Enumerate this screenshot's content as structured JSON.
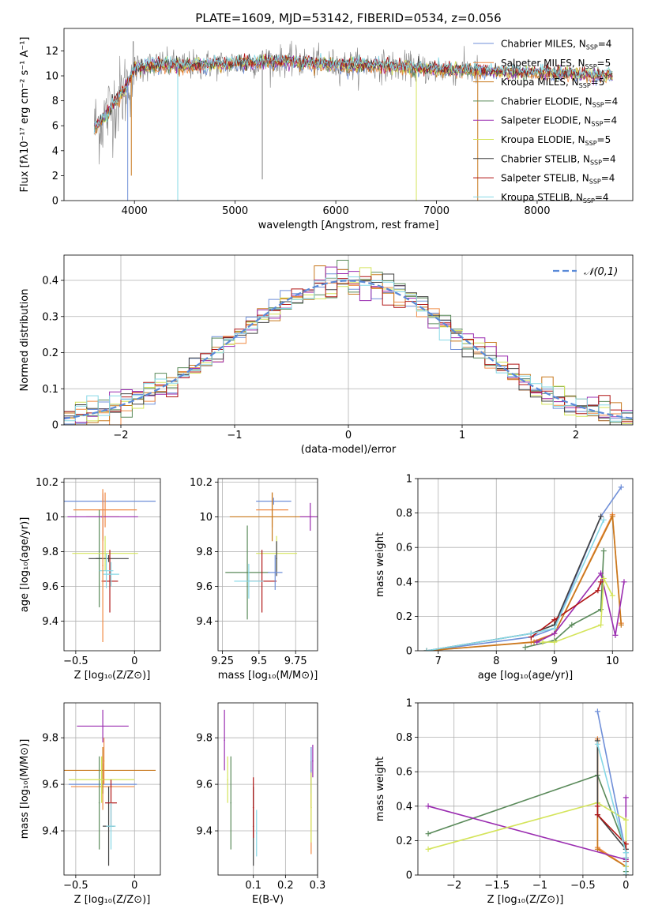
{
  "title": "PLATE=1609, MJD=53142, FIBERID=0534, z=0.056",
  "colors": {
    "Chabrier MILES": "#6f8fd8",
    "Salpeter MILES": "#f08a44",
    "Kroupa MILES": "#c8781c",
    "Chabrier ELODIE": "#5a8a5a",
    "Salpeter ELODIE": "#9a2cb0",
    "Kroupa ELODIE": "#d4e45a",
    "Chabrier STELIB": "#404040",
    "Salpeter STELIB": "#b01515",
    "Kroupa STELIB": "#86d8e6",
    "Spectrum": "#808080",
    "Gaussian": "#5a8ad8"
  },
  "chart_data": [
    {
      "name": "spectrum",
      "type": "line",
      "title": "PLATE=1609, MJD=53142, FIBERID=0534, z=0.056",
      "xlabel": "wavelength [Angstrom, rest frame]",
      "ylabel": "Flux [fλ10⁻¹⁷ erg cm⁻² s⁻¹ A⁻¹]",
      "xlim": [
        3300,
        8950
      ],
      "ylim": [
        0,
        13.8
      ],
      "xticks": [
        4000,
        5000,
        6000,
        7000,
        8000
      ],
      "yticks": [
        0,
        2,
        4,
        6,
        8,
        10,
        12
      ],
      "legend_position": "right",
      "legend": [
        "Chabrier MILES, N_SSP=4",
        "Salpeter MILES, N_SSP=5",
        "Kroupa MILES, N_SSP=5",
        "Chabrier ELODIE, N_SSP=4",
        "Salpeter ELODIE, N_SSP=4",
        "Kroupa ELODIE, N_SSP=5",
        "Chabrier STELIB, N_SSP=4",
        "Salpeter STELIB, N_SSP=4",
        "Kroupa STELIB, N_SSP=4"
      ],
      "continuum_x": [
        3600,
        3700,
        3800,
        3900,
        4000,
        4200,
        4500,
        5000,
        5500,
        6000,
        6500,
        7000,
        7400,
        7800,
        8200,
        8500,
        8900
      ],
      "continuum_y": [
        5.8,
        6.6,
        7.8,
        8.8,
        10.6,
        10.9,
        10.8,
        11.0,
        11.2,
        10.9,
        10.8,
        10.5,
        10.4,
        10.3,
        10.2,
        10.1,
        10.0
      ],
      "absorption_dips": [
        {
          "x": 3933,
          "y": 0.0,
          "model": "Chabrier MILES"
        },
        {
          "x": 3969,
          "y": 2.0,
          "model": "Kroupa MILES"
        },
        {
          "x": 4430,
          "y": 0.0,
          "model": "Kroupa STELIB"
        },
        {
          "x": 5270,
          "y": 1.7,
          "model": "Spectrum"
        },
        {
          "x": 6800,
          "y": 0.0,
          "model": "Kroupa ELODIE"
        },
        {
          "x": 7410,
          "y": 0.0,
          "model": "Kroupa MILES"
        }
      ],
      "data_end_x": 7420,
      "model_end_x": 8750
    },
    {
      "name": "residual-histogram",
      "type": "bar",
      "xlabel": "(data-model)/error",
      "ylabel": "Normed distribution",
      "xlim": [
        -2.5,
        2.5
      ],
      "ylim": [
        0,
        0.47
      ],
      "xticks": [
        -2,
        -1,
        0,
        1,
        2
      ],
      "yticks": [
        0,
        0.1,
        0.2,
        0.3,
        0.4
      ],
      "legend": "𝒩(0,1)",
      "legend_position": "top-right",
      "bin_width": 0.1,
      "gaussian": {
        "mean": 0,
        "sigma": 1
      }
    },
    {
      "name": "age-vs-Z",
      "type": "scatter",
      "xlabel": "Z [log₁₀(Z/Z⊙)]",
      "ylabel": "age  [log₁₀(age/yr)]",
      "xlim": [
        -0.6,
        0.22
      ],
      "ylim": [
        9.23,
        10.22
      ],
      "xticks": [
        -0.5,
        0.0
      ],
      "yticks": [
        9.4,
        9.6,
        9.8,
        10.0,
        10.2
      ],
      "points": [
        {
          "model": "Chabrier MILES",
          "x": -0.27,
          "y": 10.09,
          "xerr": 0.45,
          "yerr": 0.02
        },
        {
          "model": "Salpeter MILES",
          "x": -0.25,
          "y": 10.04,
          "xerr": 0.27,
          "yerr": 0.1
        },
        {
          "model": "Kroupa MILES",
          "x": -0.27,
          "y": 10.0,
          "xerr": 0.14,
          "yerr": 0.14
        },
        {
          "model": "Chabrier ELODIE",
          "x": -0.3,
          "y": 9.76,
          "xerr": 0.03,
          "yerr": 0.28
        },
        {
          "model": "Salpeter ELODIE",
          "x": -0.27,
          "y": 10.0,
          "xerr": 0.3,
          "yerr": 0.13
        },
        {
          "model": "Kroupa ELODIE",
          "x": -0.25,
          "y": 9.79,
          "xerr": 0.28,
          "yerr": 0.1
        },
        {
          "model": "Chabrier STELIB",
          "x": -0.22,
          "y": 9.76,
          "xerr": 0.17,
          "yerr": 0.02
        },
        {
          "model": "Salpeter STELIB",
          "x": -0.21,
          "y": 9.63,
          "xerr": 0.07,
          "yerr": 0.18
        },
        {
          "model": "Kroupa STELIB",
          "x": -0.2,
          "y": 9.67,
          "xerr": 0.07,
          "yerr": 0.07
        },
        {
          "model": "Salpeter ELODIE",
          "x": -0.28,
          "y": 10.0,
          "xerr": 0.0,
          "yerr": 0.0
        },
        {
          "model": "Kroupa STELIB",
          "x": -0.24,
          "y": 9.69,
          "xerr": 0.06,
          "yerr": 0.1
        },
        {
          "model": "Salpeter MILES",
          "x": -0.27,
          "y": 9.72,
          "xerr": 0.0,
          "yerr": 0.44
        }
      ]
    },
    {
      "name": "age-vs-mass",
      "type": "scatter",
      "xlabel": "mass [log₁₀(M/M⊙)]",
      "ylabel": "",
      "xlim": [
        9.22,
        9.9
      ],
      "ylim": [
        9.23,
        10.22
      ],
      "xticks": [
        9.25,
        9.5,
        9.75
      ],
      "yticks": [
        9.4,
        9.6,
        9.8,
        10.0,
        10.2
      ],
      "points": [
        {
          "model": "Chabrier MILES",
          "x": 9.6,
          "y": 10.09,
          "xerr": 0.12,
          "yerr": 0.02
        },
        {
          "model": "Salpeter MILES",
          "x": 9.59,
          "y": 10.04,
          "xerr": 0.11,
          "yerr": 0.1
        },
        {
          "model": "Kroupa MILES",
          "x": 9.59,
          "y": 10.0,
          "xerr": 0.29,
          "yerr": 0.14
        },
        {
          "model": "Chabrier ELODIE",
          "x": 9.42,
          "y": 9.68,
          "xerr": 0.15,
          "yerr": 0.27
        },
        {
          "model": "Salpeter ELODIE",
          "x": 9.85,
          "y": 10.0,
          "xerr": 0.07,
          "yerr": 0.08
        },
        {
          "model": "Kroupa ELODIE",
          "x": 9.62,
          "y": 9.79,
          "xerr": 0.14,
          "yerr": 0.1
        },
        {
          "model": "Chabrier STELIB",
          "x": 9.62,
          "y": 9.76,
          "xerr": 0.0,
          "yerr": 0.1
        },
        {
          "model": "Salpeter STELIB",
          "x": 9.52,
          "y": 9.63,
          "xerr": 0.1,
          "yerr": 0.18
        },
        {
          "model": "Kroupa STELIB",
          "x": 9.43,
          "y": 9.63,
          "xerr": 0.1,
          "yerr": 0.1
        },
        {
          "model": "Chabrier MILES",
          "x": 9.61,
          "y": 9.68,
          "xerr": 0.05,
          "yerr": 0.1
        }
      ]
    },
    {
      "name": "massweight-vs-age",
      "type": "line",
      "xlabel": "age  [log₁₀(age/yr)]",
      "ylabel": "mass weight",
      "xlim": [
        6.65,
        10.35
      ],
      "ylim": [
        0,
        1
      ],
      "xticks": [
        7,
        8,
        9,
        10
      ],
      "yticks": [
        0,
        0.2,
        0.4,
        0.6,
        0.8,
        1.0
      ],
      "series": [
        {
          "name": "Chabrier MILES",
          "x": [
            6.8,
            8.6,
            9.0,
            9.8,
            10.15
          ],
          "y": [
            0.0,
            0.08,
            0.13,
            0.78,
            0.95
          ]
        },
        {
          "name": "Salpeter MILES",
          "x": [
            6.8,
            8.6,
            9.0,
            10.0,
            10.15
          ],
          "y": [
            0.0,
            0.05,
            0.1,
            0.79,
            0.16
          ]
        },
        {
          "name": "Kroupa MILES",
          "x": [
            6.8,
            8.65,
            9.0,
            10.0,
            10.15
          ],
          "y": [
            0.0,
            0.05,
            0.1,
            0.78,
            0.15
          ]
        },
        {
          "name": "Chabrier ELODIE",
          "x": [
            8.5,
            9.0,
            9.3,
            9.8,
            9.85
          ],
          "y": [
            0.02,
            0.06,
            0.15,
            0.24,
            0.58
          ]
        },
        {
          "name": "Salpeter ELODIE",
          "x": [
            8.7,
            9.0,
            9.8,
            10.05,
            10.2
          ],
          "y": [
            0.05,
            0.1,
            0.45,
            0.09,
            0.4
          ]
        },
        {
          "name": "Kroupa ELODIE",
          "x": [
            8.8,
            9.0,
            9.8,
            9.85,
            10.0
          ],
          "y": [
            0.05,
            0.05,
            0.15,
            0.42,
            0.32
          ]
        },
        {
          "name": "Chabrier STELIB",
          "x": [
            6.8,
            8.6,
            9.0,
            9.8
          ],
          "y": [
            0.0,
            0.1,
            0.15,
            0.78
          ]
        },
        {
          "name": "Salpeter STELIB",
          "x": [
            8.6,
            9.0,
            9.75,
            9.8
          ],
          "y": [
            0.08,
            0.18,
            0.35,
            0.4
          ]
        },
        {
          "name": "Kroupa STELIB",
          "x": [
            6.8,
            8.6,
            9.0,
            9.85
          ],
          "y": [
            0.0,
            0.1,
            0.13,
            0.76
          ]
        }
      ]
    },
    {
      "name": "mass-vs-Z",
      "type": "scatter",
      "xlabel": "Z [log₁₀(Z/Z⊙)]",
      "ylabel": "mass [log₁₀(M/M⊙)]",
      "xlim": [
        -0.6,
        0.22
      ],
      "ylim": [
        9.21,
        9.95
      ],
      "xticks": [
        -0.5,
        0.0
      ],
      "yticks": [
        9.4,
        9.6,
        9.8
      ],
      "points": [
        {
          "model": "Chabrier MILES",
          "x": -0.27,
          "y": 9.6,
          "xerr": 0.29,
          "yerr": 0.0
        },
        {
          "model": "Salpeter MILES",
          "x": -0.27,
          "y": 9.59,
          "xerr": 0.27,
          "yerr": 0.1
        },
        {
          "model": "Kroupa MILES",
          "x": -0.27,
          "y": 9.66,
          "xerr": 0.45,
          "yerr": 0.1
        },
        {
          "model": "Chabrier ELODIE",
          "x": -0.3,
          "y": 9.52,
          "xerr": 0.0,
          "yerr": 0.2
        },
        {
          "model": "Salpeter ELODIE",
          "x": -0.27,
          "y": 9.85,
          "xerr": 0.22,
          "yerr": 0.07
        },
        {
          "model": "Kroupa ELODIE",
          "x": -0.28,
          "y": 9.62,
          "xerr": 0.28,
          "yerr": 0.1
        },
        {
          "model": "Chabrier STELIB",
          "x": -0.22,
          "y": 9.42,
          "xerr": 0.05,
          "yerr": 0.17
        },
        {
          "model": "Salpeter STELIB",
          "x": -0.2,
          "y": 9.52,
          "xerr": 0.05,
          "yerr": 0.1
        },
        {
          "model": "Kroupa STELIB",
          "x": -0.2,
          "y": 9.42,
          "xerr": 0.04,
          "yerr": 0.1
        },
        {
          "model": "Salpeter MILES",
          "x": -0.26,
          "y": 9.7,
          "xerr": 0.0,
          "yerr": 0.1
        }
      ]
    },
    {
      "name": "mass-vs-EBV",
      "type": "scatter",
      "xlabel": "E(B-V)",
      "ylabel": "",
      "xlim": [
        -0.01,
        0.3
      ],
      "ylim": [
        9.21,
        9.95
      ],
      "xticks": [
        0.1,
        0.2,
        0.3
      ],
      "yticks": [
        9.4,
        9.6,
        9.8
      ],
      "points": [
        {
          "model": "Salpeter ELODIE",
          "x": 0.01,
          "y": 9.79,
          "xerr": 0.0,
          "yerr": 0.13
        },
        {
          "model": "Kroupa ELODIE",
          "x": 0.02,
          "y": 9.62,
          "xerr": 0.0,
          "yerr": 0.1
        },
        {
          "model": "Chabrier ELODIE",
          "x": 0.03,
          "y": 9.52,
          "xerr": 0.0,
          "yerr": 0.2
        },
        {
          "model": "Chabrier STELIB",
          "x": 0.1,
          "y": 9.42,
          "xerr": 0.0,
          "yerr": 0.17
        },
        {
          "model": "Salpeter STELIB",
          "x": 0.1,
          "y": 9.5,
          "xerr": 0.0,
          "yerr": 0.13
        },
        {
          "model": "Kroupa STELIB",
          "x": 0.11,
          "y": 9.39,
          "xerr": 0.0,
          "yerr": 0.1
        },
        {
          "model": "Salpeter MILES",
          "x": 0.28,
          "y": 9.5,
          "xerr": 0.0,
          "yerr": 0.2
        },
        {
          "model": "Kroupa MILES",
          "x": 0.28,
          "y": 9.6,
          "xerr": 0.0,
          "yerr": 0.1
        },
        {
          "model": "Chabrier MILES",
          "x": 0.28,
          "y": 9.66,
          "xerr": 0.0,
          "yerr": 0.1
        },
        {
          "model": "Salpeter ELODIE",
          "x": 0.285,
          "y": 9.7,
          "xerr": 0.0,
          "yerr": 0.07
        },
        {
          "model": "Kroupa ELODIE",
          "x": 0.28,
          "y": 9.5,
          "xerr": 0.0,
          "yerr": 0.15
        }
      ]
    },
    {
      "name": "massweight-vs-Z",
      "type": "line",
      "xlabel": "Z [log₁₀(Z/Z⊙)]",
      "ylabel": "mass weight",
      "xlim": [
        -2.42,
        0.08
      ],
      "ylim": [
        0,
        1
      ],
      "xticks": [
        -2.0,
        -1.5,
        -1.0,
        -0.5,
        0.0
      ],
      "yticks": [
        0,
        0.2,
        0.4,
        0.6,
        0.8,
        1.0
      ],
      "series": [
        {
          "name": "Chabrier MILES",
          "x": [
            -0.33,
            0.0,
            0.0,
            0.0
          ],
          "y": [
            0.95,
            0.13,
            0.08,
            0.0
          ]
        },
        {
          "name": "Salpeter MILES",
          "x": [
            -0.33,
            -0.33,
            0.0,
            0.0,
            0.0
          ],
          "y": [
            0.79,
            0.16,
            0.05,
            0.1,
            0.0
          ]
        },
        {
          "name": "Kroupa MILES",
          "x": [
            -0.33,
            -0.33,
            0.0,
            0.0,
            0.0
          ],
          "y": [
            0.78,
            0.15,
            0.05,
            0.1,
            0.0
          ]
        },
        {
          "name": "Chabrier ELODIE",
          "x": [
            -2.3,
            -0.33,
            0.0,
            0.0
          ],
          "y": [
            0.24,
            0.58,
            0.15,
            0.02
          ]
        },
        {
          "name": "Salpeter ELODIE",
          "x": [
            -2.3,
            0.0,
            0.0,
            0.0
          ],
          "y": [
            0.4,
            0.09,
            0.45,
            0.1
          ]
        },
        {
          "name": "Kroupa ELODIE",
          "x": [
            -2.3,
            -0.33,
            0.0,
            0.0
          ],
          "y": [
            0.15,
            0.42,
            0.32,
            0.05
          ]
        },
        {
          "name": "Chabrier STELIB",
          "x": [
            -0.33,
            -0.33,
            0.0,
            0.0
          ],
          "y": [
            0.78,
            0.35,
            0.15,
            0.0
          ]
        },
        {
          "name": "Salpeter STELIB",
          "x": [
            -0.33,
            -0.33,
            0.0,
            0.0
          ],
          "y": [
            0.4,
            0.35,
            0.18,
            0.08
          ]
        },
        {
          "name": "Kroupa STELIB",
          "x": [
            -0.33,
            0.0,
            0.0,
            0.0
          ],
          "y": [
            0.76,
            0.13,
            0.1,
            0.0
          ]
        }
      ]
    }
  ]
}
